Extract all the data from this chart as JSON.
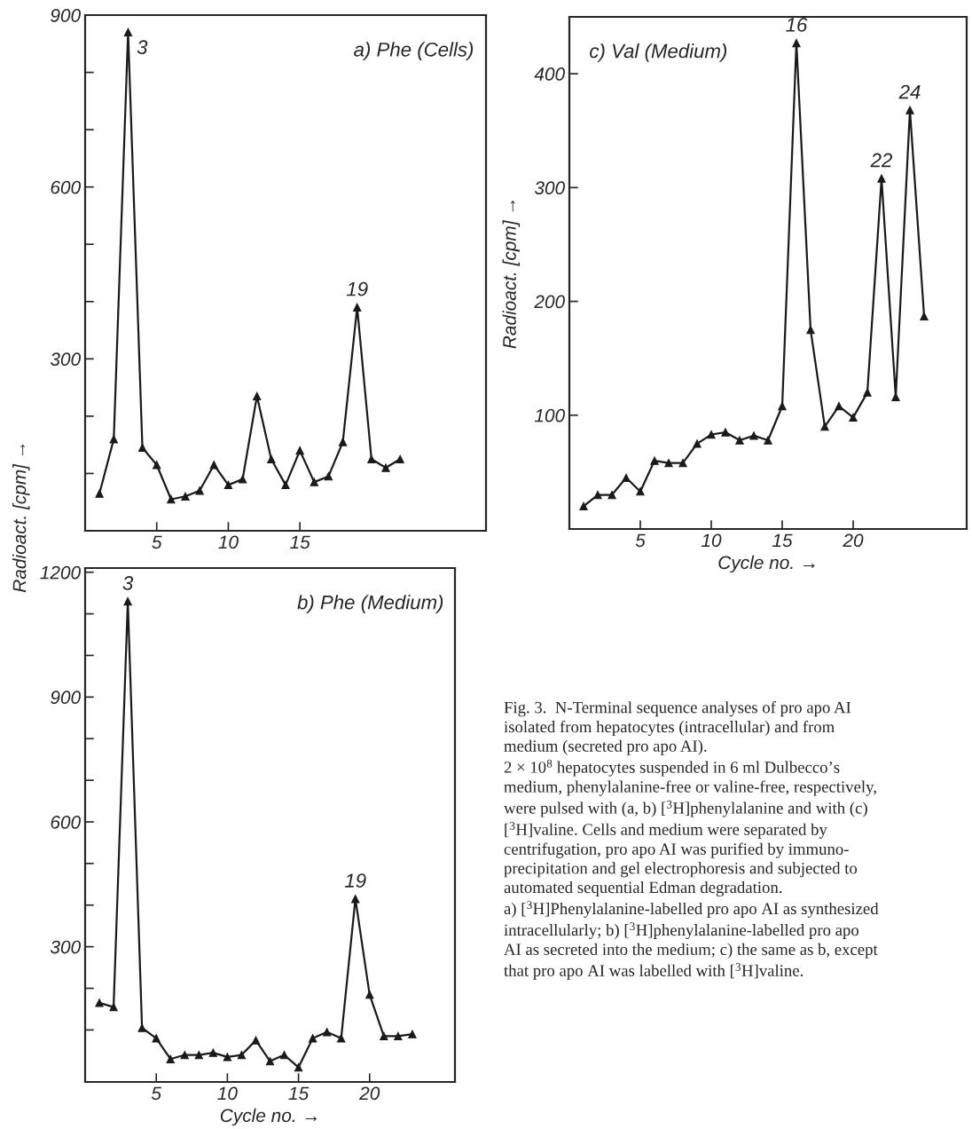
{
  "chart_data": [
    {
      "type": "line",
      "title": "a) Phe (Cells)",
      "x": [
        1,
        2,
        3,
        4,
        5,
        6,
        7,
        8,
        9,
        10,
        11,
        12,
        13,
        14,
        15,
        16,
        17,
        18,
        19,
        20,
        21,
        22
      ],
      "series": [
        {
          "color": "#1a1a1a",
          "values": [
            65,
            160,
            870,
            145,
            115,
            55,
            60,
            70,
            115,
            80,
            90,
            235,
            125,
            80,
            140,
            85,
            95,
            155,
            390,
            125,
            110,
            125
          ]
        }
      ],
      "xlim": [
        0,
        28
      ],
      "ylim": [
        0,
        900
      ],
      "xticks": [
        5,
        10,
        15
      ],
      "yticks": [
        {
          "value": 100,
          "label": null
        },
        {
          "value": 200,
          "label": null
        },
        300,
        {
          "value": 400,
          "label": null
        },
        {
          "value": 500,
          "label": null
        },
        600,
        {
          "value": 700,
          "label": null
        },
        {
          "value": 800,
          "label": null
        },
        900
      ],
      "marker": "triangle",
      "grid": false,
      "annotations": [
        {
          "text": "3",
          "x": 3,
          "y": 870
        },
        {
          "text": "19",
          "x": 19,
          "y": 390
        }
      ]
    },
    {
      "type": "line",
      "title": "b) Phe (Medium)",
      "xlabel": "Cycle no. →",
      "ylabel": "Radioact. [cpm] →",
      "x": [
        1,
        2,
        3,
        4,
        5,
        6,
        7,
        8,
        9,
        10,
        11,
        12,
        13,
        14,
        15,
        16,
        17,
        18,
        19,
        20,
        21,
        22,
        23
      ],
      "series": [
        {
          "color": "#1a1a1a",
          "values": [
            165,
            155,
            1130,
            105,
            80,
            30,
            40,
            40,
            45,
            35,
            40,
            75,
            25,
            40,
            10,
            80,
            95,
            80,
            415,
            185,
            85,
            85,
            90
          ]
        }
      ],
      "xlim": [
        0,
        26
      ],
      "ylim": [
        -25,
        1210
      ],
      "xticks": [
        5,
        10,
        15,
        20
      ],
      "yticks": [
        {
          "value": 100,
          "label": null
        },
        {
          "value": 200,
          "label": null
        },
        300,
        {
          "value": 400,
          "label": null
        },
        {
          "value": 500,
          "label": null
        },
        600,
        {
          "value": 700,
          "label": null
        },
        {
          "value": 800,
          "label": null
        },
        900,
        {
          "value": 1000,
          "label": null
        },
        {
          "value": 1100,
          "label": null
        },
        1200
      ],
      "marker": "triangle",
      "grid": false,
      "annotations": [
        {
          "text": "3",
          "x": 3,
          "y": 1130
        },
        {
          "text": "19",
          "x": 19,
          "y": 415
        }
      ]
    },
    {
      "type": "line",
      "title": "c) Val (Medium)",
      "xlabel": "Cycle no. →",
      "ylabel": "Radioact. [cpm] →",
      "x": [
        1,
        2,
        3,
        4,
        5,
        6,
        7,
        8,
        9,
        10,
        11,
        12,
        13,
        14,
        15,
        16,
        17,
        18,
        19,
        20,
        21,
        22,
        23,
        24,
        25
      ],
      "series": [
        {
          "color": "#1a1a1a",
          "values": [
            20,
            30,
            30,
            45,
            33,
            60,
            58,
            58,
            75,
            83,
            85,
            78,
            82,
            78,
            108,
            427,
            175,
            90,
            108,
            98,
            120,
            308,
            116,
            368,
            187
          ]
        }
      ],
      "xlim": [
        0,
        28
      ],
      "ylim": [
        0,
        450
      ],
      "xticks": [
        5,
        10,
        15,
        20
      ],
      "yticks": [
        100,
        200,
        300,
        400
      ],
      "marker": "triangle",
      "grid": false,
      "annotations": [
        {
          "text": "16",
          "x": 16,
          "y": 427
        },
        {
          "text": "22",
          "x": 22,
          "y": 308
        },
        {
          "text": "24",
          "x": 24,
          "y": 368
        },
        "Fig. 3.  N-Terminal sequence analyses of pro apo AI\nisolated from hepatocytes (intracellular) and from\nmedium (secreted pro apo AI).",
        "2 × 10$^{8}$ hepatocytes suspended in 6 ml Dulbecco’s\nmedium, phenylalanine-free or valine-free, respectively,\nwere pulsed with (a, b) [$^{3}$H]phenylalanine and with (c)\n[$^{3}$H]valine. Cells and medium were separated by\ncentrifugation, pro apo AI was purified by immuno-\nprecipitation and gel electrophoresis and subjected to\nautomated sequential Edman degradation.",
        "a) [$^{3}$H]Phenylalanine-labelled pro apo AI as synthesized\nintracellularly; b) [$^{3}$H]phenylalanine-labelled pro apo\nAI as secreted into the medium; c) the same as b, except\nthat pro apo AI was labelled with [$^{3}$H]valine."
      ]
    }
  ]
}
